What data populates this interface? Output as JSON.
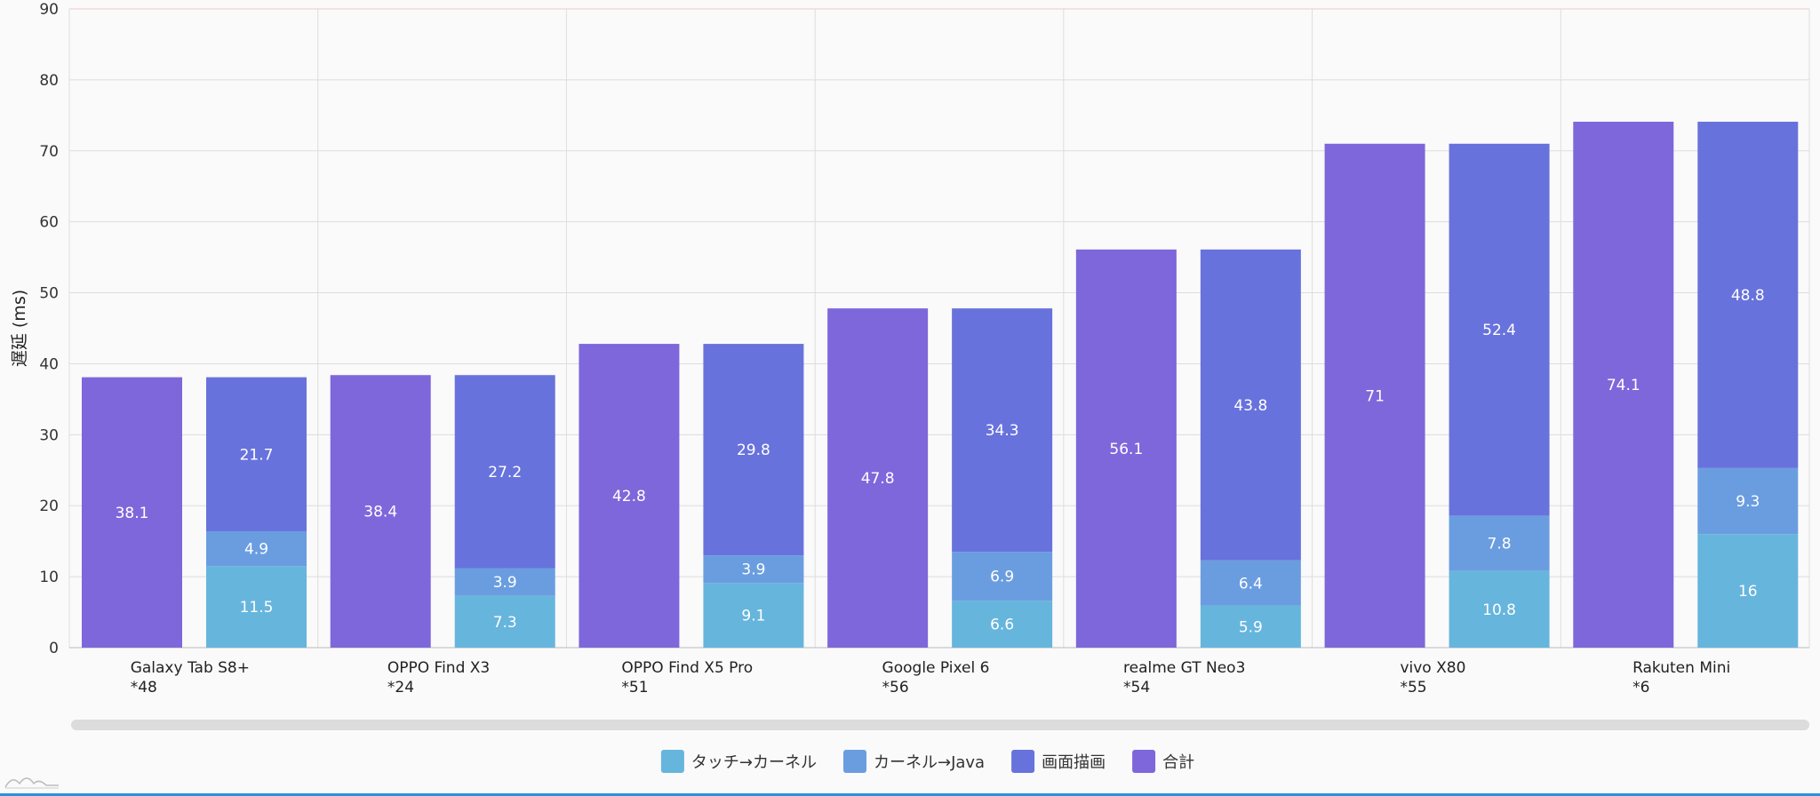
{
  "chart_data": {
    "type": "bar",
    "title": "",
    "ylabel": "遅延 (ms)",
    "xlabel": "",
    "ylim": [
      0,
      90
    ],
    "yticks": [
      0,
      10,
      20,
      30,
      40,
      50,
      60,
      70,
      80,
      90
    ],
    "categories": [
      {
        "name": "Galaxy Tab S8+",
        "sub": "*48"
      },
      {
        "name": "OPPO Find X3",
        "sub": "*24"
      },
      {
        "name": "OPPO Find X5 Pro",
        "sub": "*51"
      },
      {
        "name": "Google Pixel 6",
        "sub": "*56"
      },
      {
        "name": "realme GT Neo3",
        "sub": "*54"
      },
      {
        "name": "vivo X80",
        "sub": "*55"
      },
      {
        "name": "Rakuten Mini",
        "sub": "*6"
      }
    ],
    "series": [
      {
        "name": "タッチ→カーネル",
        "color": "#66b5dd",
        "stack": "breakdown",
        "values": [
          11.5,
          7.3,
          9.1,
          6.6,
          5.9,
          10.8,
          16
        ]
      },
      {
        "name": "カーネル→Java",
        "color": "#6a9de0",
        "stack": "breakdown",
        "values": [
          4.9,
          3.9,
          3.9,
          6.9,
          6.4,
          7.8,
          9.3
        ]
      },
      {
        "name": "画面描画",
        "color": "#6872dc",
        "stack": "breakdown",
        "values": [
          21.7,
          27.2,
          29.8,
          34.3,
          43.8,
          52.4,
          48.8
        ]
      },
      {
        "name": "合計",
        "color": "#7e67db",
        "stack": "total",
        "values": [
          38.1,
          38.4,
          42.8,
          47.8,
          56.1,
          71,
          74.1
        ]
      }
    ],
    "legend": [
      "タッチ→カーネル",
      "カーネル→Java",
      "画面描画",
      "合計"
    ],
    "legend_position": "bottom-center",
    "grid": true
  }
}
